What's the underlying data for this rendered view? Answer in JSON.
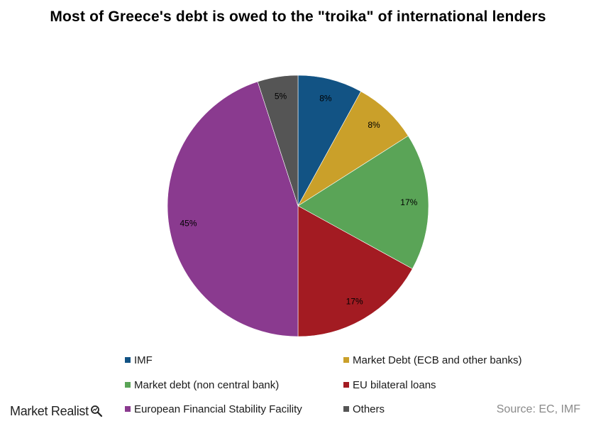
{
  "chart_data": {
    "type": "pie",
    "title": "Most of Greece's debt is owed to the \"troika\"  of international lenders",
    "categories": [
      "IMF",
      "Market Debt (ECB and other banks)",
      "Market debt (non central bank)",
      "EU bilateral loans",
      "European Financial Stability Facility",
      "Others"
    ],
    "values": [
      8,
      8,
      17,
      17,
      45,
      5
    ],
    "data_labels": [
      "8%",
      "8%",
      "17%",
      "17%",
      "45%",
      "5%"
    ],
    "colors": [
      "#125384",
      "#caa02a",
      "#5aa457",
      "#a31b22",
      "#8a3a8f",
      "#555555"
    ],
    "start_angle": "top (12 o'clock), clockwise",
    "legend_position": "bottom"
  },
  "footer": {
    "logo_text": "Market Realist",
    "logo_icon": "magnifier-icon",
    "source": "Source: EC, IMF"
  }
}
